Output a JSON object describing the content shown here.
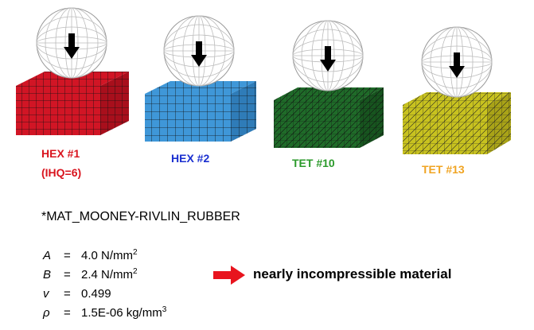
{
  "figure": {
    "elements": [
      {
        "label_line1": "HEX #1",
        "label_line2": "(IHQ=6)",
        "color": "#d11525",
        "label_color": "#d9141e"
      },
      {
        "label_line1": "HEX #2",
        "label_line2": "",
        "color": "#3f97d8",
        "label_color": "#1a2fd0"
      },
      {
        "label_line1": "TET #10",
        "label_line2": "",
        "color": "#1f6b29",
        "label_color": "#2b9a2b"
      },
      {
        "label_line1": "TET #13",
        "label_line2": "",
        "color": "#c8c21f",
        "label_color": "#f0a422"
      }
    ],
    "sphere_icon": "wireframe-sphere-icon",
    "down_arrow_icon": "down-arrow-icon"
  },
  "material": {
    "title": "*MAT_MOONEY-RIVLIN_RUBBER",
    "properties": [
      {
        "symbol": "A",
        "value": "4.0 N/mm",
        "exp": "2"
      },
      {
        "symbol": "B",
        "value": "2.4 N/mm",
        "exp": "2"
      },
      {
        "symbol": "v",
        "value": "0.499",
        "exp": ""
      },
      {
        "symbol": "ρ",
        "value": "1.5E-06 kg/mm",
        "exp": "3"
      }
    ],
    "equals": "=",
    "note": "nearly incompressible material",
    "note_arrow_color": "#e8141e"
  }
}
